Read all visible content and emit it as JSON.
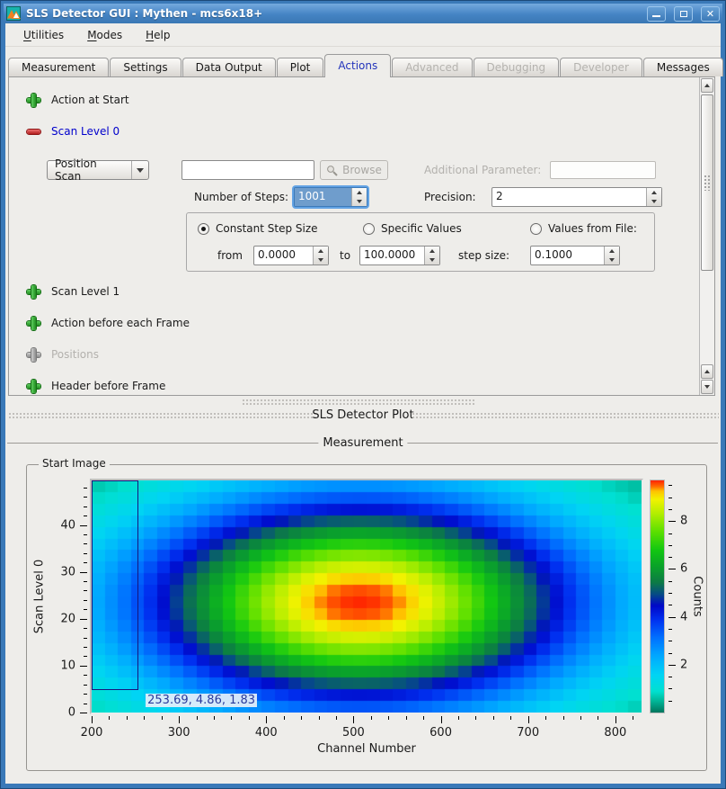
{
  "window": {
    "title": "SLS Detector GUI : Mythen - mcs6x18+",
    "controls": {
      "minimize": "minimize",
      "maximize": "maximize",
      "close": "close"
    }
  },
  "menubar": {
    "items": [
      "Utilities",
      "Modes",
      "Help"
    ]
  },
  "tabs": [
    {
      "label": "Measurement",
      "state": "normal"
    },
    {
      "label": "Settings",
      "state": "normal"
    },
    {
      "label": "Data Output",
      "state": "normal"
    },
    {
      "label": "Plot",
      "state": "normal"
    },
    {
      "label": "Actions",
      "state": "active"
    },
    {
      "label": "Advanced",
      "state": "disabled"
    },
    {
      "label": "Debugging",
      "state": "disabled"
    },
    {
      "label": "Developer",
      "state": "disabled"
    },
    {
      "label": "Messages",
      "state": "normal"
    }
  ],
  "actions_panel": {
    "action_at_start": "Action at Start",
    "scan_level_0": "Scan Level 0",
    "scan_level_1": "Scan Level 1",
    "action_before_frame": "Action before each Frame",
    "positions": "Positions",
    "header_before_frame": "Header before Frame",
    "scan0": {
      "mode_value": "Position Scan",
      "script_value": "",
      "browse_label": "Browse",
      "additional_parameter_label": "Additional Parameter:",
      "additional_parameter_value": "",
      "steps_label": "Number of Steps:",
      "steps_value": "1001",
      "precision_label": "Precision:",
      "precision_value": "2",
      "options": [
        "Constant Step Size",
        "Specific Values",
        "Values from File:"
      ],
      "selected_option": "Constant Step Size",
      "from_label": "from",
      "from_value": "0.0000",
      "to_label": "to",
      "to_value": "100.0000",
      "step_label": "step size:",
      "step_value": "0.1000"
    }
  },
  "dock_title": "SLS Detector Plot",
  "plot_group": {
    "title": "Measurement",
    "frame_title": "Start Image"
  },
  "icons": {
    "app": "teal-orange-mountain",
    "browse": "magnifier",
    "add_action": "green-plus",
    "remove_action": "red-minus",
    "disabled_action": "gray-plus"
  },
  "colors": {
    "titlebar": "#3a79b8",
    "panel_bg": "#eeedea",
    "active_tab_text": "#2233bb",
    "scan_link_text": "#0000cc",
    "add_icon": "#2ea22e",
    "remove_icon": "#c22020",
    "text_selection_bg": "#6f9dcc"
  },
  "chart_data": {
    "type": "heatmap",
    "title": "Start Image",
    "xlabel": "Channel Number",
    "ylabel": "Scan Level 0",
    "zlabel": "Counts",
    "xlim": [
      200,
      830
    ],
    "ylim": [
      0,
      49.5
    ],
    "zlim": [
      0,
      9.7
    ],
    "x_ticks": [
      200,
      300,
      400,
      500,
      600,
      700,
      800
    ],
    "x_minor_step": 20,
    "y_ticks": [
      0,
      10,
      20,
      30,
      40
    ],
    "y_minor_step": 2,
    "z_ticks": [
      2,
      4,
      6,
      8
    ],
    "z_minor_step": 0.5,
    "grid": false,
    "legend_position": "right",
    "grid_cols": 42,
    "grid_rows": 20,
    "peak": {
      "center_x": 507,
      "center_y": 23.5,
      "sigma_x": 178,
      "sigma_y": 15.5,
      "amplitude": 9.7
    },
    "colormap": [
      [
        0.0,
        "#00785f"
      ],
      [
        0.05,
        "#00b89a"
      ],
      [
        0.09,
        "#00e0d0"
      ],
      [
        0.16,
        "#00d4f4"
      ],
      [
        0.24,
        "#00aaff"
      ],
      [
        0.32,
        "#0072ff"
      ],
      [
        0.4,
        "#0030f0"
      ],
      [
        0.46,
        "#0008c8"
      ],
      [
        0.51,
        "#064c86"
      ],
      [
        0.56,
        "#0c7a46"
      ],
      [
        0.63,
        "#0aa32a"
      ],
      [
        0.7,
        "#12c712"
      ],
      [
        0.78,
        "#5ce000"
      ],
      [
        0.86,
        "#b4ee00"
      ],
      [
        0.92,
        "#f2f200"
      ],
      [
        0.955,
        "#ffc400"
      ],
      [
        0.975,
        "#ff7000"
      ],
      [
        1.0,
        "#ff2800"
      ]
    ],
    "cursor_readout": "253.69, 4.86, 1.83",
    "selection_rect": {
      "x0": 200,
      "y0": 4.86,
      "x1": 253.69,
      "y1": 49.5
    }
  }
}
